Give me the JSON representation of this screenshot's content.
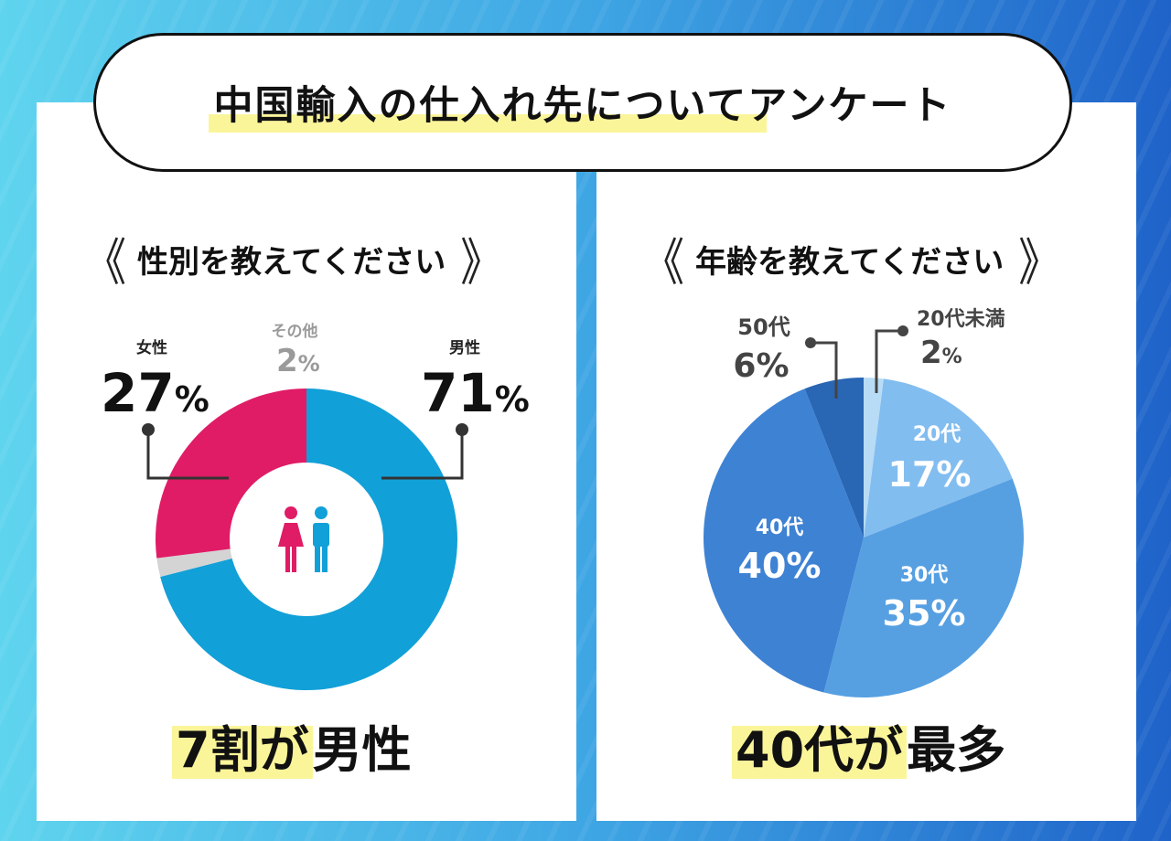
{
  "title": "中国輸入の仕入れ先についてアンケート",
  "gender_section": {
    "heading": "性別を教えてください",
    "conclusion_highlight": "7割が",
    "conclusion_rest": "男性"
  },
  "age_section": {
    "heading": "年齢を教えてください",
    "conclusion_highlight": "40代が",
    "conclusion_rest": "最多"
  },
  "chevron_left": "《",
  "chevron_right": "》",
  "percent_sign": "%",
  "chart_data": [
    {
      "type": "pie",
      "title": "性別を教えてください",
      "donut": true,
      "categories": [
        "男性",
        "その他",
        "女性"
      ],
      "values": [
        71,
        2,
        27
      ],
      "labels": [
        {
          "name": "女性",
          "value": "27"
        },
        {
          "name": "その他",
          "value": "2"
        },
        {
          "name": "男性",
          "value": "71"
        }
      ],
      "colors": [
        "#12a0d8",
        "#d4d4d4",
        "#e01c66"
      ],
      "center_icon": "person-couple-icon"
    },
    {
      "type": "pie",
      "title": "年齢を教えてください",
      "categories": [
        "20代未満",
        "20代",
        "30代",
        "40代",
        "50代"
      ],
      "values": [
        2,
        17,
        35,
        40,
        6
      ],
      "colors": [
        "#b8dcf6",
        "#82bdf0",
        "#56a0e2",
        "#3e82d4",
        "#2966b4"
      ]
    }
  ]
}
